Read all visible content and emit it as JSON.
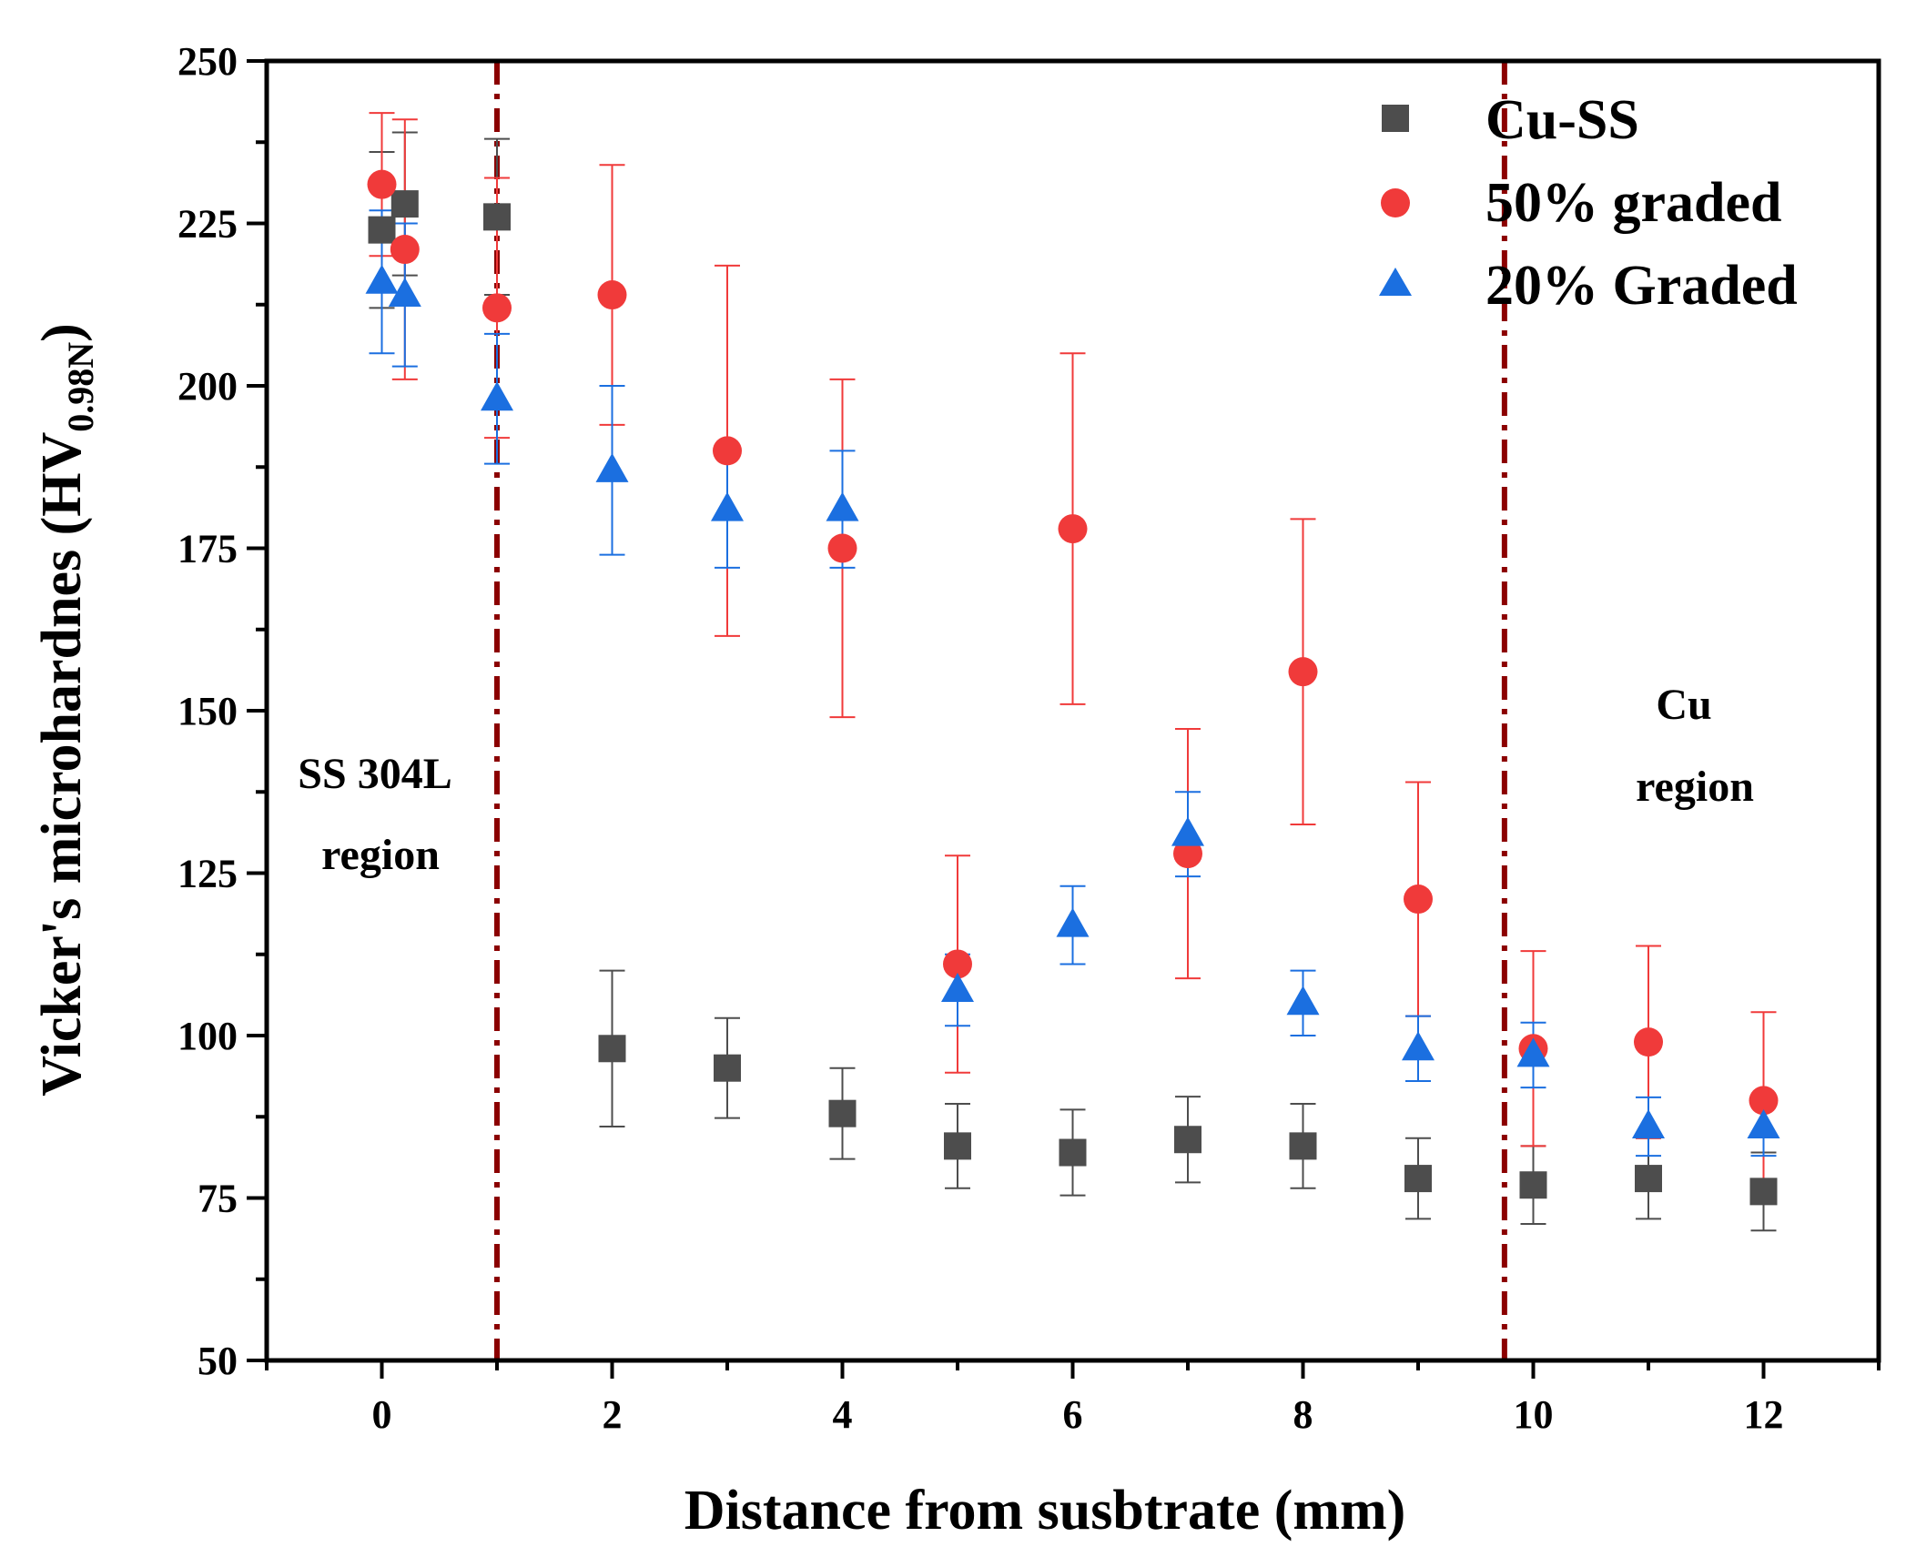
{
  "chart_data": {
    "type": "scatter",
    "xlabel": "Distance from susbtrate (mm)",
    "ylabel_main": "Vicker's microhardnes (HV",
    "ylabel_sub": "0.98N",
    "ylabel_close": ")",
    "xlim": [
      -1,
      13
    ],
    "ylim": [
      50,
      250
    ],
    "x_ticks": [
      0,
      2,
      4,
      6,
      8,
      10,
      12
    ],
    "y_ticks": [
      50,
      75,
      100,
      125,
      150,
      175,
      200,
      225,
      250
    ],
    "legend_position": "top-right",
    "series": [
      {
        "name": "Cu-SS",
        "marker": "square",
        "color": "#4d4d4d",
        "points": [
          {
            "x": 0,
            "y": 224,
            "err": 12
          },
          {
            "x": 0.2,
            "y": 228,
            "err": 11
          },
          {
            "x": 1,
            "y": 226,
            "err": 12
          },
          {
            "x": 2,
            "y": 98,
            "err": 12
          },
          {
            "x": 3,
            "y": 95,
            "err": 7.7
          },
          {
            "x": 4,
            "y": 88,
            "err": 7
          },
          {
            "x": 5,
            "y": 83,
            "err": 6.5
          },
          {
            "x": 6,
            "y": 82,
            "err": 6.6
          },
          {
            "x": 7,
            "y": 84,
            "err": 6.6
          },
          {
            "x": 8,
            "y": 83,
            "err": 6.5
          },
          {
            "x": 9,
            "y": 78,
            "err": 6.2
          },
          {
            "x": 10,
            "y": 77,
            "err": 6
          },
          {
            "x": 11,
            "y": 78,
            "err": 6.2
          },
          {
            "x": 12,
            "y": 76,
            "err": 6
          }
        ]
      },
      {
        "name": "50% graded",
        "marker": "circle",
        "color": "#f03a3a",
        "points": [
          {
            "x": 0,
            "y": 231,
            "err": 11
          },
          {
            "x": 0.2,
            "y": 221,
            "err": 20
          },
          {
            "x": 1,
            "y": 212,
            "err": 20
          },
          {
            "x": 2,
            "y": 214,
            "err": 20
          },
          {
            "x": 3,
            "y": 190,
            "err": 28.5
          },
          {
            "x": 4,
            "y": 175,
            "err": 26
          },
          {
            "x": 5,
            "y": 111,
            "err": 16.7
          },
          {
            "x": 6,
            "y": 178,
            "err": 27
          },
          {
            "x": 7,
            "y": 128,
            "err": 19.2
          },
          {
            "x": 8,
            "y": 156,
            "err": 23.5
          },
          {
            "x": 9,
            "y": 121,
            "err": 18
          },
          {
            "x": 10,
            "y": 98,
            "err": 15
          },
          {
            "x": 11,
            "y": 99,
            "err": 14.8
          },
          {
            "x": 12,
            "y": 90,
            "err": 13.6
          }
        ]
      },
      {
        "name": "20% Graded",
        "marker": "triangle",
        "color": "#1b6fe0",
        "points": [
          {
            "x": 0,
            "y": 216,
            "err": 11
          },
          {
            "x": 0.2,
            "y": 214,
            "err": 11
          },
          {
            "x": 1,
            "y": 198,
            "err": 10
          },
          {
            "x": 2,
            "y": 187,
            "err": 13
          },
          {
            "x": 3,
            "y": 181,
            "err": 9
          },
          {
            "x": 4,
            "y": 181,
            "err": 9
          },
          {
            "x": 5,
            "y": 107,
            "err": 5.5
          },
          {
            "x": 6,
            "y": 117,
            "err": 6
          },
          {
            "x": 7,
            "y": 131,
            "err": 6.5
          },
          {
            "x": 8,
            "y": 105,
            "err": 5
          },
          {
            "x": 9,
            "y": 98,
            "err": 5
          },
          {
            "x": 10,
            "y": 97,
            "err": 5
          },
          {
            "x": 11,
            "y": 86,
            "err": 4.5
          },
          {
            "x": 12,
            "y": 86,
            "err": 4.5
          }
        ]
      }
    ],
    "boundary_lines": [
      {
        "x": 1,
        "color": "#8b0000",
        "style": "dash-dot"
      },
      {
        "x": 9.75,
        "color": "#8b0000",
        "style": "dash-dot"
      }
    ],
    "annotations": {
      "left_region": [
        "SS 304L",
        "region"
      ],
      "right_region": [
        "Cu",
        "region"
      ]
    }
  }
}
